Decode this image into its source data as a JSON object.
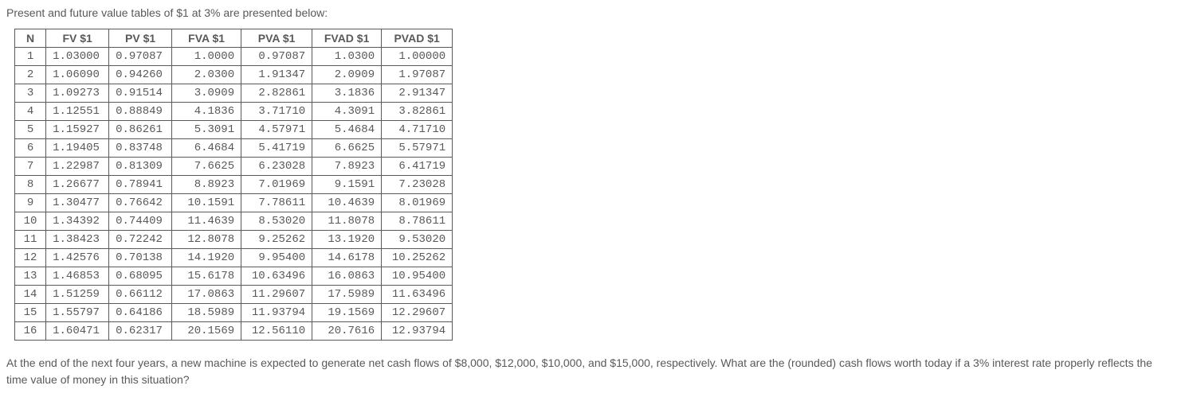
{
  "intro": "Present and future value tables of $1 at 3% are presented below:",
  "table": {
    "columns": [
      "N",
      "FV $1",
      "PV $1",
      "FVA $1",
      "PVA $1",
      "FVAD $1",
      "PVAD $1"
    ],
    "rows": [
      [
        "1",
        "1.03000",
        "0.97087",
        "1.0000",
        "0.97087",
        "1.0300",
        "1.00000"
      ],
      [
        "2",
        "1.06090",
        "0.94260",
        "2.0300",
        "1.91347",
        "2.0909",
        "1.97087"
      ],
      [
        "3",
        "1.09273",
        "0.91514",
        "3.0909",
        "2.82861",
        "3.1836",
        "2.91347"
      ],
      [
        "4",
        "1.12551",
        "0.88849",
        "4.1836",
        "3.71710",
        "4.3091",
        "3.82861"
      ],
      [
        "5",
        "1.15927",
        "0.86261",
        "5.3091",
        "4.57971",
        "5.4684",
        "4.71710"
      ],
      [
        "6",
        "1.19405",
        "0.83748",
        "6.4684",
        "5.41719",
        "6.6625",
        "5.57971"
      ],
      [
        "7",
        "1.22987",
        "0.81309",
        "7.6625",
        "6.23028",
        "7.8923",
        "6.41719"
      ],
      [
        "8",
        "1.26677",
        "0.78941",
        "8.8923",
        "7.01969",
        "9.1591",
        "7.23028"
      ],
      [
        "9",
        "1.30477",
        "0.76642",
        "10.1591",
        "7.78611",
        "10.4639",
        "8.01969"
      ],
      [
        "10",
        "1.34392",
        "0.74409",
        "11.4639",
        "8.53020",
        "11.8078",
        "8.78611"
      ],
      [
        "11",
        "1.38423",
        "0.72242",
        "12.8078",
        "9.25262",
        "13.1920",
        "9.53020"
      ],
      [
        "12",
        "1.42576",
        "0.70138",
        "14.1920",
        "9.95400",
        "14.6178",
        "10.25262"
      ],
      [
        "13",
        "1.46853",
        "0.68095",
        "15.6178",
        "10.63496",
        "16.0863",
        "10.95400"
      ],
      [
        "14",
        "1.51259",
        "0.66112",
        "17.0863",
        "11.29607",
        "17.5989",
        "11.63496"
      ],
      [
        "15",
        "1.55797",
        "0.64186",
        "18.5989",
        "11.93794",
        "19.1569",
        "12.29607"
      ],
      [
        "16",
        "1.60471",
        "0.62317",
        "20.1569",
        "12.56110",
        "20.7616",
        "12.93794"
      ]
    ],
    "header_font_family": "Arial",
    "cell_font_family": "Courier New",
    "font_size_pt": 10.5,
    "border_color": "#595959",
    "text_color": "#595959",
    "background_color": "#ffffff",
    "column_align": [
      "center",
      "left",
      "left",
      "right",
      "right",
      "right",
      "right"
    ]
  },
  "question": "At the end of the next four years, a new machine is expected to generate net cash flows of $8,000, $12,000, $10,000, and $15,000, respectively. What are the (rounded) cash flows worth today if a 3% interest rate properly reflects the time value of money in this situation?"
}
